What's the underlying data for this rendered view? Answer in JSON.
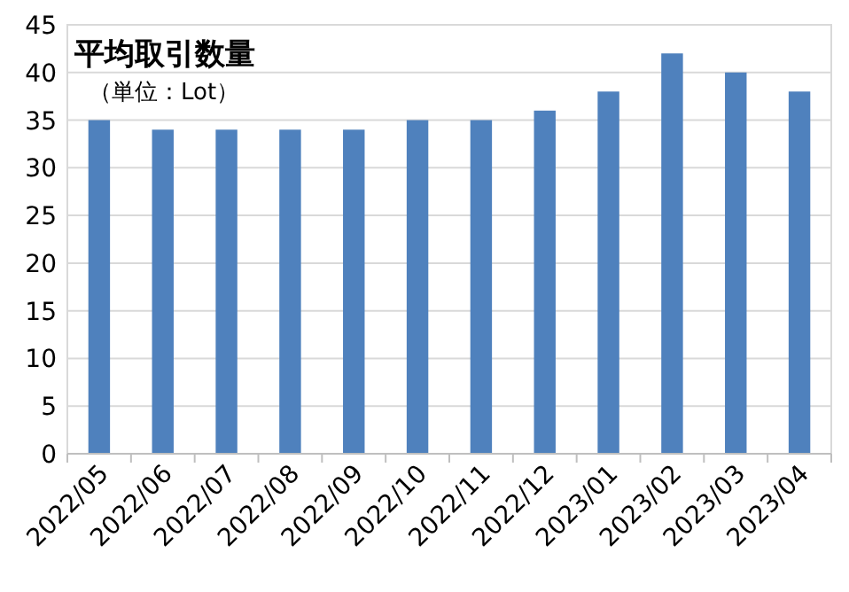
{
  "chart_data": {
    "type": "bar",
    "title": "平均取引数量",
    "subtitle": "（単位：Lot）",
    "categories": [
      "2022/05",
      "2022/06",
      "2022/07",
      "2022/08",
      "2022/09",
      "2022/10",
      "2022/11",
      "2022/12",
      "2023/01",
      "2023/02",
      "2023/03",
      "2023/04"
    ],
    "values": [
      35,
      34,
      34,
      34,
      34,
      35,
      35,
      36,
      38,
      42,
      40,
      38
    ],
    "color": "#4f81bd",
    "ylim": [
      0,
      45
    ],
    "yticks": [
      0,
      5,
      10,
      15,
      20,
      25,
      30,
      35,
      40,
      45
    ],
    "grid": "y"
  }
}
